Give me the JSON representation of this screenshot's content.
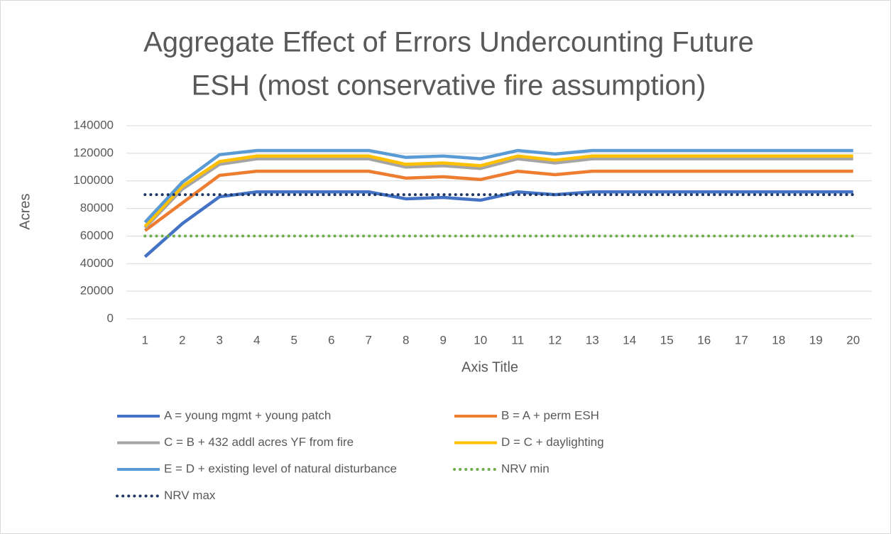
{
  "chart_data": {
    "type": "line",
    "title": [
      "Aggregate Effect of Errors Undercounting Future",
      "ESH (most conservative fire assumption)"
    ],
    "x_label": "Axis Title",
    "y_label": "Acres",
    "categories": [
      "1",
      "2",
      "3",
      "4",
      "5",
      "6",
      "7",
      "8",
      "9",
      "10",
      "11",
      "12",
      "13",
      "14",
      "15",
      "16",
      "17",
      "18",
      "19",
      "20"
    ],
    "ylim": [
      0,
      140000
    ],
    "yticks": [
      0,
      20000,
      40000,
      60000,
      80000,
      100000,
      120000,
      140000
    ],
    "grid": true,
    "series": [
      {
        "name": "A = young mgmt + young patch",
        "color": "#4472c4",
        "style": "solid",
        "values": [
          45000,
          69000,
          88500,
          92000,
          92000,
          92000,
          92000,
          87000,
          88000,
          86000,
          92000,
          90000,
          92000,
          92000,
          92000,
          92000,
          92000,
          92000,
          92000,
          92000
        ]
      },
      {
        "name": "B = A + perm ESH",
        "color": "#ed7d31",
        "style": "solid",
        "values": [
          64000,
          84000,
          104000,
          107000,
          107000,
          107000,
          107000,
          102000,
          103000,
          101000,
          107000,
          104500,
          107000,
          107000,
          107000,
          107000,
          107000,
          107000,
          107000,
          107000
        ]
      },
      {
        "name": "C = B + 432 addl acres YF from fire",
        "color": "#a5a5a5",
        "style": "solid",
        "values": [
          66000,
          94000,
          112000,
          116000,
          116000,
          116000,
          116000,
          110000,
          111000,
          109000,
          116000,
          113000,
          116000,
          116000,
          116000,
          116000,
          116000,
          116000,
          116000,
          116000
        ]
      },
      {
        "name": "D = C + daylighting",
        "color": "#ffc000",
        "style": "solid",
        "values": [
          67000,
          96000,
          114000,
          118000,
          118000,
          118000,
          118000,
          112000,
          113000,
          111000,
          118000,
          115000,
          118000,
          118000,
          118000,
          118000,
          118000,
          118000,
          118000,
          118000
        ]
      },
      {
        "name": "E = D + existing level of natural disturbance",
        "color": "#5b9bd5",
        "style": "solid",
        "values": [
          70000,
          99000,
          119000,
          122000,
          122000,
          122000,
          122000,
          117000,
          118000,
          116000,
          122000,
          119500,
          122000,
          122000,
          122000,
          122000,
          122000,
          122000,
          122000,
          122000
        ]
      },
      {
        "name": "NRV min",
        "color": "#70ad47",
        "style": "dotted",
        "values": [
          60000,
          60000,
          60000,
          60000,
          60000,
          60000,
          60000,
          60000,
          60000,
          60000,
          60000,
          60000,
          60000,
          60000,
          60000,
          60000,
          60000,
          60000,
          60000,
          60000
        ]
      },
      {
        "name": "NRV max",
        "color": "#203864",
        "style": "dotted",
        "values": [
          90000,
          90000,
          90000,
          90000,
          90000,
          90000,
          90000,
          90000,
          90000,
          90000,
          90000,
          90000,
          90000,
          90000,
          90000,
          90000,
          90000,
          90000,
          90000,
          90000
        ]
      }
    ]
  }
}
